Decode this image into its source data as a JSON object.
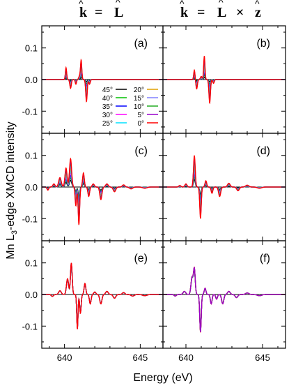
{
  "header": {
    "left": {
      "k": "k",
      "eq": "=",
      "L": "L"
    },
    "right": {
      "k": "k",
      "eq": "=",
      "L": "L",
      "times": "×",
      "z": "z"
    }
  },
  "axes": {
    "ylabel_prefix": "Mn L",
    "ylabel_sub": "3",
    "ylabel_suffix": "-edge XMCD intensity",
    "xlabel": "Energy (eV)"
  },
  "chart_data": {
    "type": "line",
    "xlabel": "Energy (eV)",
    "ylabel": "Mn L3-edge XMCD intensity",
    "xlim": [
      638.5,
      646.5
    ],
    "ylim": [
      -0.17,
      0.17
    ],
    "x_ticks": [
      640,
      645
    ],
    "y_ticks": [
      0.1,
      0.0,
      -0.1
    ],
    "y_tick_labels": [
      "0.1",
      "0.0",
      "-0.1"
    ],
    "x_tick_labels": [
      "640",
      "645"
    ],
    "legend": {
      "placement": "panel-a-bottom",
      "entries": [
        {
          "name": "45°",
          "color": "#000000"
        },
        {
          "name": "40°",
          "color": "#00c000"
        },
        {
          "name": "35°",
          "color": "#0000ff"
        },
        {
          "name": "30°",
          "color": "#ff00ff"
        },
        {
          "name": "25°",
          "color": "#00e0ff"
        },
        {
          "name": "20°",
          "color": "#e0a000"
        },
        {
          "name": "15°",
          "color": "#8080ff"
        },
        {
          "name": "10°",
          "color": "#22aa22"
        },
        {
          "name": "5°",
          "color": "#9900cc"
        },
        {
          "name": "0°",
          "color": "#ff0000"
        }
      ]
    },
    "panels": [
      {
        "label": "(a)",
        "row": 0,
        "col": 0,
        "peaks": [
          [
            640.1,
            0.038,
            0.06
          ],
          [
            640.4,
            -0.028,
            0.07
          ],
          [
            640.75,
            -0.015,
            0.06
          ],
          [
            641.0,
            0.012,
            0.08
          ],
          [
            641.1,
            0.06,
            0.06
          ],
          [
            641.45,
            -0.07,
            0.07
          ],
          [
            641.65,
            -0.015,
            0.07
          ]
        ]
      },
      {
        "label": "(b)",
        "row": 0,
        "col": 1,
        "peaks": [
          [
            640.55,
            0.03,
            0.06
          ],
          [
            640.7,
            -0.03,
            0.07
          ],
          [
            641.0,
            0.01,
            0.08
          ],
          [
            641.2,
            0.075,
            0.06
          ],
          [
            641.55,
            -0.075,
            0.07
          ],
          [
            641.8,
            -0.012,
            0.07
          ]
        ]
      },
      {
        "label": "(c)",
        "row": 1,
        "col": 0,
        "peaks": [
          [
            638.9,
            -0.01,
            0.08
          ],
          [
            639.3,
            0.01,
            0.1
          ],
          [
            639.7,
            0.03,
            0.12
          ],
          [
            640.1,
            0.06,
            0.1
          ],
          [
            640.4,
            0.09,
            0.1
          ],
          [
            640.75,
            -0.06,
            0.07
          ],
          [
            640.95,
            -0.12,
            0.07
          ],
          [
            641.25,
            0.045,
            0.08
          ],
          [
            641.6,
            -0.03,
            0.08
          ],
          [
            641.9,
            0.01,
            0.1
          ],
          [
            642.4,
            -0.04,
            0.1
          ],
          [
            642.8,
            0.01,
            0.12
          ],
          [
            643.3,
            -0.015,
            0.12
          ],
          [
            643.9,
            0.007,
            0.12
          ],
          [
            644.4,
            -0.006,
            0.15
          ],
          [
            645.3,
            -0.004,
            0.2
          ]
        ]
      },
      {
        "label": "(d)",
        "row": 1,
        "col": 1,
        "peaks": [
          [
            639.6,
            0.005,
            0.1
          ],
          [
            640.0,
            0.01,
            0.1
          ],
          [
            640.55,
            0.1,
            0.08
          ],
          [
            640.95,
            -0.1,
            0.07
          ],
          [
            641.3,
            0.02,
            0.08
          ],
          [
            641.7,
            -0.02,
            0.08
          ],
          [
            642.2,
            -0.03,
            0.1
          ],
          [
            642.8,
            0.012,
            0.12
          ],
          [
            643.4,
            -0.012,
            0.12
          ],
          [
            644.0,
            0.006,
            0.15
          ],
          [
            644.8,
            -0.004,
            0.2
          ]
        ]
      },
      {
        "label": "(e)",
        "row": 2,
        "col": 0,
        "peaks": [
          [
            639.2,
            -0.006,
            0.1
          ],
          [
            639.7,
            0.012,
            0.12
          ],
          [
            640.2,
            0.05,
            0.1
          ],
          [
            640.45,
            0.1,
            0.08
          ],
          [
            640.85,
            -0.11,
            0.06
          ],
          [
            641.05,
            -0.06,
            0.07
          ],
          [
            641.35,
            0.035,
            0.08
          ],
          [
            641.7,
            -0.03,
            0.08
          ],
          [
            642.0,
            0.008,
            0.1
          ],
          [
            642.4,
            -0.03,
            0.1
          ],
          [
            642.8,
            0.01,
            0.12
          ],
          [
            643.3,
            -0.012,
            0.12
          ],
          [
            643.9,
            0.006,
            0.12
          ],
          [
            644.5,
            -0.005,
            0.15
          ],
          [
            645.3,
            -0.004,
            0.2
          ]
        ]
      },
      {
        "label": "(f)",
        "row": 2,
        "col": 1,
        "peaks": [
          [
            639.3,
            -0.005,
            0.1
          ],
          [
            639.9,
            0.01,
            0.12
          ],
          [
            640.4,
            0.055,
            0.1
          ],
          [
            640.55,
            0.08,
            0.08
          ],
          [
            640.95,
            -0.12,
            0.07
          ],
          [
            641.25,
            0.02,
            0.08
          ],
          [
            641.65,
            -0.03,
            0.08
          ],
          [
            642.0,
            -0.015,
            0.08
          ],
          [
            642.4,
            -0.03,
            0.1
          ],
          [
            642.8,
            0.01,
            0.12
          ],
          [
            643.3,
            -0.01,
            0.12
          ],
          [
            644.0,
            0.005,
            0.15
          ],
          [
            644.8,
            -0.004,
            0.2
          ]
        ]
      }
    ]
  }
}
